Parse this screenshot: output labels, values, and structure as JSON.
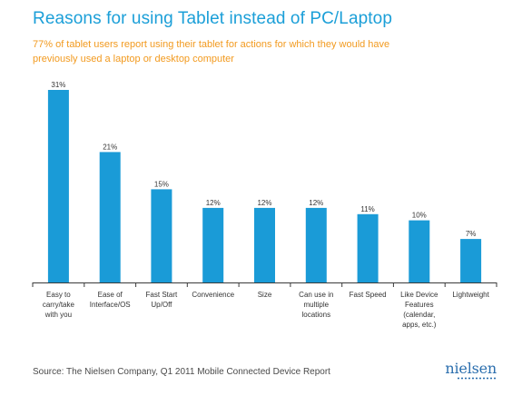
{
  "header": {
    "title": "Reasons for using Tablet instead of PC/Laptop",
    "subtitle": "77% of tablet users report using their tablet for actions for which they would have previously used a laptop or desktop computer"
  },
  "footer": {
    "source": "Source: The Nielsen Company, Q1 2011 Mobile Connected Device Report",
    "logo_text": "nielsen"
  },
  "colors": {
    "title": "#1b9fd8",
    "subtitle": "#f29a1f",
    "bar": "#1a9bd7",
    "logo": "#2c6fae"
  },
  "chart_data": {
    "type": "bar",
    "title": "Reasons for using Tablet instead of PC/Laptop",
    "xlabel": "",
    "ylabel": "",
    "ylim": [
      0,
      31
    ],
    "grid": false,
    "legend": "none",
    "categories": [
      [
        "Easy to",
        "carry/take",
        "with you"
      ],
      [
        "Ease of",
        "Interface/OS"
      ],
      [
        "Fast Start",
        "Up/Off"
      ],
      [
        "Convenience"
      ],
      [
        "Size"
      ],
      [
        "Can use in",
        "multiple",
        "locations"
      ],
      [
        "Fast Speed"
      ],
      [
        "Like Device",
        "Features",
        "(calendar,",
        "apps, etc.)"
      ],
      [
        "Lightweight"
      ]
    ],
    "values": [
      31,
      21,
      15,
      12,
      12,
      12,
      11,
      10,
      7
    ],
    "value_labels": [
      "31%",
      "21%",
      "15%",
      "12%",
      "12%",
      "12%",
      "11%",
      "10%",
      "7%"
    ]
  }
}
